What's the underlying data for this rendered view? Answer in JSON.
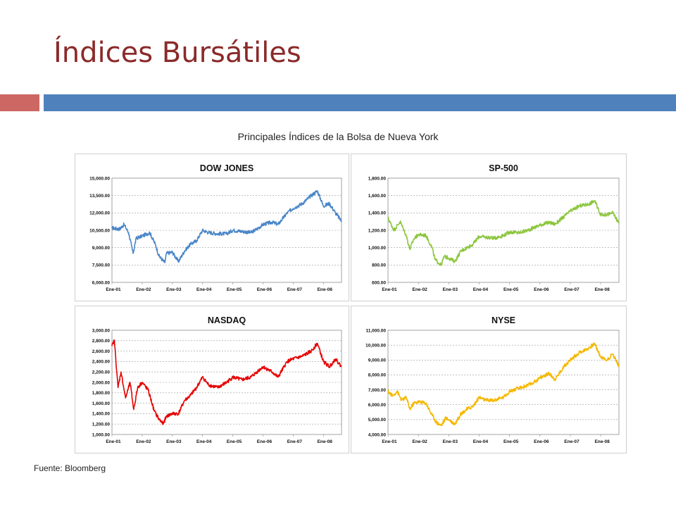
{
  "slide": {
    "title": "Índices Bursátiles",
    "figure_title": "Principales Índices de la Bolsa de Nueva York",
    "source": "Fuente: Bloomberg",
    "accent_colors": {
      "title": "#8b2a2a",
      "bar_left": "#cd6764",
      "bar_right": "#4f81bd"
    }
  },
  "chart_data": [
    {
      "type": "line",
      "title": "DOW JONES",
      "color": "#4a86c8",
      "ylim": [
        6000,
        15000
      ],
      "yticks": [
        "6,000.00",
        "7,500.00",
        "9,000.00",
        "10,500.00",
        "12,000.00",
        "13,500.00",
        "15,000.00"
      ],
      "ytick_values": [
        6000,
        7500,
        9000,
        10500,
        12000,
        13500,
        15000
      ],
      "xticks": [
        "Ene-01",
        "Ene-02",
        "Ene-03",
        "Ene-04",
        "Ene-05",
        "Ene-06",
        "Ene-07",
        "Ene-08"
      ],
      "xlim": [
        2001.0,
        2008.6
      ],
      "grid": true,
      "series": [
        {
          "x": [
            2001.0,
            2001.25,
            2001.4,
            2001.55,
            2001.7,
            2001.8,
            2002.0,
            2002.25,
            2002.45,
            2002.55,
            2002.75,
            2002.8,
            2003.0,
            2003.2,
            2003.4,
            2003.6,
            2003.8,
            2004.0,
            2004.2,
            2004.5,
            2004.8,
            2005.0,
            2005.3,
            2005.6,
            2005.8,
            2006.0,
            2006.3,
            2006.5,
            2006.8,
            2007.0,
            2007.3,
            2007.6,
            2007.8,
            2008.0,
            2008.2,
            2008.4,
            2008.6
          ],
          "y": [
            10700,
            10600,
            11000,
            10300,
            8500,
            9800,
            10000,
            10300,
            9200,
            8300,
            7700,
            8500,
            8600,
            7800,
            8700,
            9300,
            9600,
            10500,
            10300,
            10200,
            10200,
            10500,
            10400,
            10300,
            10600,
            11000,
            11200,
            11000,
            12000,
            12400,
            12800,
            13500,
            13900,
            12600,
            12800,
            12000,
            11300
          ]
        }
      ]
    },
    {
      "type": "line",
      "title": "SP-500",
      "color": "#8dc63f",
      "ylim": [
        600,
        1800
      ],
      "yticks": [
        "600.00",
        "800.00",
        "1,000.00",
        "1,200.00",
        "1,400.00",
        "1,600.00",
        "1,800.00"
      ],
      "ytick_values": [
        600,
        800,
        1000,
        1200,
        1400,
        1600,
        1800
      ],
      "xticks": [
        "Ene-01",
        "Ene-02",
        "Ene-03",
        "Ene-04",
        "Ene-05",
        "Ene-06",
        "Ene-07",
        "Ene-08"
      ],
      "xlim": [
        2001.0,
        2008.6
      ],
      "grid": true,
      "series": [
        {
          "x": [
            2001.0,
            2001.2,
            2001.4,
            2001.6,
            2001.72,
            2001.85,
            2002.0,
            2002.25,
            2002.45,
            2002.55,
            2002.75,
            2002.85,
            2003.0,
            2003.2,
            2003.4,
            2003.6,
            2003.8,
            2004.0,
            2004.2,
            2004.5,
            2004.8,
            2005.0,
            2005.3,
            2005.6,
            2005.8,
            2006.0,
            2006.3,
            2006.5,
            2006.8,
            2007.0,
            2007.3,
            2007.6,
            2007.8,
            2008.0,
            2008.2,
            2008.4,
            2008.6
          ],
          "y": [
            1340,
            1200,
            1300,
            1140,
            980,
            1100,
            1150,
            1140,
            1000,
            860,
            800,
            900,
            880,
            840,
            960,
            1000,
            1040,
            1130,
            1120,
            1110,
            1140,
            1180,
            1170,
            1200,
            1230,
            1260,
            1290,
            1270,
            1360,
            1420,
            1480,
            1500,
            1540,
            1380,
            1380,
            1400,
            1280
          ]
        }
      ]
    },
    {
      "type": "line",
      "title": "NASDAQ",
      "color": "#e60000",
      "ylim": [
        1000,
        3000
      ],
      "yticks": [
        "1,000.00",
        "1,200.00",
        "1,400.00",
        "1,600.00",
        "1,800.00",
        "2,000.00",
        "2,200.00",
        "2,400.00",
        "2,600.00",
        "2,800.00",
        "3,000.00"
      ],
      "ytick_values": [
        1000,
        1200,
        1400,
        1600,
        1800,
        2000,
        2200,
        2400,
        2600,
        2800,
        3000
      ],
      "xticks": [
        "Ene-01",
        "Ene-02",
        "Ene-03",
        "Ene-04",
        "Ene-05",
        "Ene-06",
        "Ene-07",
        "Ene-08"
      ],
      "xlim": [
        2001.0,
        2008.6
      ],
      "grid": true,
      "series": [
        {
          "x": [
            2001.0,
            2001.08,
            2001.2,
            2001.3,
            2001.45,
            2001.6,
            2001.72,
            2001.85,
            2002.0,
            2002.2,
            2002.4,
            2002.55,
            2002.7,
            2002.8,
            2003.0,
            2003.2,
            2003.4,
            2003.6,
            2003.8,
            2004.0,
            2004.2,
            2004.5,
            2004.8,
            2005.0,
            2005.3,
            2005.6,
            2005.8,
            2006.0,
            2006.3,
            2006.5,
            2006.8,
            2007.0,
            2007.3,
            2007.6,
            2007.8,
            2008.0,
            2008.2,
            2008.4,
            2008.6
          ],
          "y": [
            2700,
            2800,
            1900,
            2200,
            1700,
            2000,
            1480,
            1900,
            2000,
            1850,
            1450,
            1300,
            1200,
            1350,
            1400,
            1400,
            1650,
            1750,
            1900,
            2100,
            1950,
            1900,
            2000,
            2100,
            2050,
            2100,
            2200,
            2300,
            2200,
            2100,
            2400,
            2450,
            2500,
            2600,
            2750,
            2400,
            2300,
            2450,
            2300
          ]
        }
      ]
    },
    {
      "type": "line",
      "title": "NYSE",
      "color": "#f5b800",
      "ylim": [
        4000,
        11000
      ],
      "yticks": [
        "4,000.00",
        "5,000.00",
        "6,000.00",
        "7,000.00",
        "8,000.00",
        "9,000.00",
        "10,000.00",
        "11,000.00"
      ],
      "ytick_values": [
        4000,
        5000,
        6000,
        7000,
        8000,
        9000,
        10000,
        11000
      ],
      "xticks": [
        "Ene-01",
        "Ene-02",
        "Ene-03",
        "Ene-04",
        "Ene-05",
        "Ene-06",
        "Ene-07",
        "Ene-08"
      ],
      "xlim": [
        2001.0,
        2008.6
      ],
      "grid": true,
      "series": [
        {
          "x": [
            2001.0,
            2001.15,
            2001.3,
            2001.45,
            2001.6,
            2001.72,
            2001.85,
            2002.0,
            2002.25,
            2002.45,
            2002.6,
            2002.75,
            2002.9,
            2003.0,
            2003.2,
            2003.4,
            2003.6,
            2003.8,
            2004.0,
            2004.2,
            2004.5,
            2004.8,
            2005.0,
            2005.3,
            2005.6,
            2005.8,
            2006.0,
            2006.3,
            2006.5,
            2006.8,
            2007.0,
            2007.3,
            2007.6,
            2007.8,
            2008.0,
            2008.2,
            2008.4,
            2008.6
          ],
          "y": [
            6900,
            6600,
            6900,
            6300,
            6500,
            5700,
            6100,
            6200,
            6100,
            5300,
            4800,
            4600,
            5100,
            5000,
            4700,
            5400,
            5700,
            5900,
            6500,
            6300,
            6300,
            6500,
            6900,
            7100,
            7300,
            7500,
            7800,
            8100,
            7700,
            8600,
            9000,
            9500,
            9800,
            10100,
            9200,
            9000,
            9400,
            8600
          ]
        }
      ]
    }
  ]
}
